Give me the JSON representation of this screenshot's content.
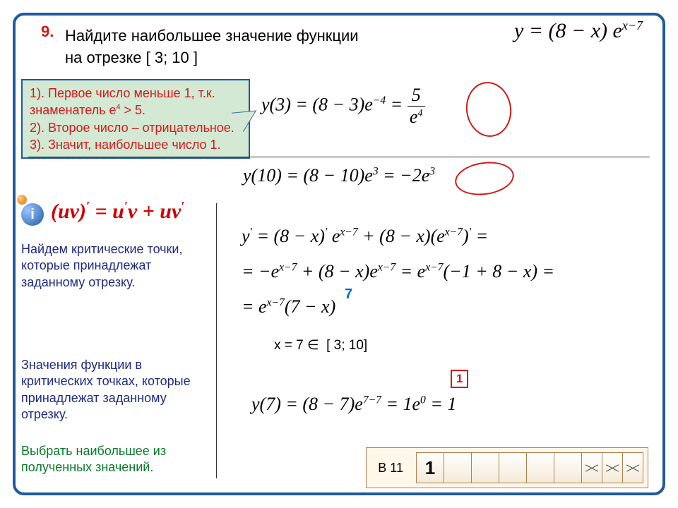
{
  "problem": {
    "number": "9.",
    "text_line1": "Найдите наибольшее значение функции",
    "text_line2": "на отрезке [ 3; 10 ]",
    "main_function": "y = (8 − x) e<sup>x−7</sup>"
  },
  "hint": {
    "line1": "1). Первое число меньше 1, т.к. знаменатель e<sup>4</sup> > 5.",
    "line2": "2). Второе число – отрицательное.",
    "line3": "3). Значит, наибольшее число 1."
  },
  "equations": {
    "y3": "y(3) = (8 − 3)e<sup>−4</sup> = <span style='display:inline-block;text-align:center;vertical-align:middle'><span style='display:block;border-bottom:1.5px solid #000;padding:0 6px'>5</span><span style='display:block;font-style:italic'>e<sup style='font-size:0.55em'>4</sup></span></span>",
    "y10": "y(10) = (8 − 10)e<sup>3</sup> = −2e<sup>3</sup>",
    "deriv1": "y<sup>′</sup> = (8 − x)<sup>′</sup> e<sup>x−7</sup> + (8 − x)(e<sup>x−7</sup>)<sup>′</sup> =",
    "deriv2": "= −e<sup>x−7</sup> + (8 − x)e<sup>x−7</sup> = e<sup>x−7</sup>(−1 + 8 − x) =",
    "deriv3": "= e<sup>x−7</sup>(7 − x)",
    "critpt": "x = 7 ∈ &nbsp;[ 3; 10]",
    "y7": "y(7) = (8 − 7)e<sup>7−7</sup> = 1e<sup>0</sup> = 1"
  },
  "product_rule": "(uv)<sup>′</sup> = u<sup>′</sup>v + uv<sup>′</sup>",
  "annotations": {
    "seven": "7",
    "one_callout": "1"
  },
  "notes": {
    "n1": "Найдем критические точки, которые принадлежат заданному отрезку.",
    "n2": "Значения функции в критических точках, которые принадлежат заданному отрезку.",
    "n3": "Выбрать наибольшее из полученных значений."
  },
  "answer": {
    "label": "В 11",
    "digits": [
      "1",
      "",
      "",
      "",
      "",
      ""
    ]
  },
  "colors": {
    "frame": "#1e5aa0",
    "accent_red": "#d11a1a",
    "note_blue": "#1e2a80",
    "hint_bg": "#d3e9d3"
  }
}
